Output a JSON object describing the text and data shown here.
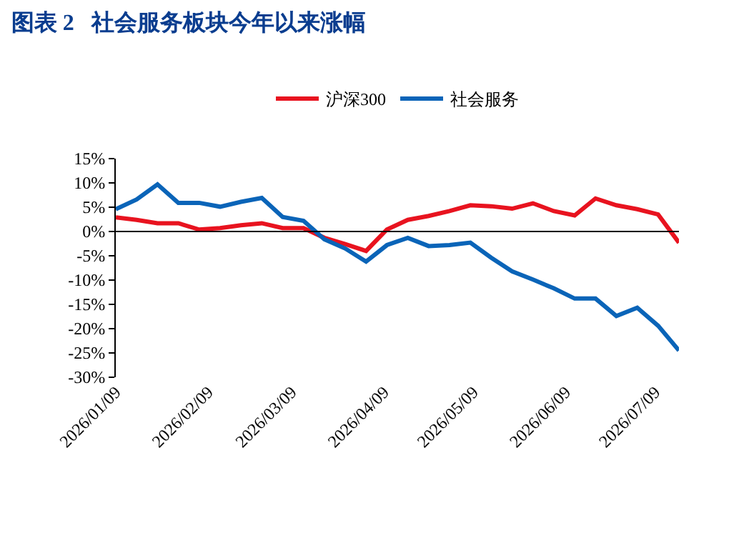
{
  "chart_data": {
    "type": "line",
    "title": "图表 2   社会服务板块今年以来涨幅",
    "x": [
      "2026-01-09",
      "2026-01-16",
      "2026-01-23",
      "2026-01-30",
      "2026-02-06",
      "2026-02-13",
      "2026-02-20",
      "2026-02-27",
      "2026-03-06",
      "2026-03-13",
      "2026-03-20",
      "2026-03-27",
      "2026-04-03",
      "2026-04-10",
      "2026-04-17",
      "2026-04-24",
      "2026-05-01",
      "2026-05-08",
      "2026-05-15",
      "2026-05-22",
      "2026-05-29",
      "2026-06-05",
      "2026-06-12",
      "2026-06-19",
      "2026-06-26",
      "2026-07-03",
      "2026-07-10",
      "2026-07-17"
    ],
    "series": [
      {
        "name": "沪深300",
        "color": "#e8131f",
        "values": [
          2.9,
          2.4,
          1.7,
          1.7,
          0.4,
          0.7,
          1.3,
          1.7,
          0.7,
          0.7,
          -1.3,
          -2.6,
          -4.0,
          0.4,
          2.4,
          3.2,
          4.2,
          5.4,
          5.2,
          4.7,
          5.8,
          4.2,
          3.3,
          6.8,
          5.4,
          4.6,
          3.5,
          -2.3
        ]
      },
      {
        "name": "社会服务",
        "color": "#0a64b8",
        "values": [
          4.6,
          6.6,
          9.7,
          5.9,
          5.9,
          5.1,
          6.1,
          6.9,
          3.0,
          2.2,
          -1.6,
          -3.5,
          -6.2,
          -2.8,
          -1.3,
          -3.0,
          -2.8,
          -2.3,
          -5.4,
          -8.2,
          -9.9,
          -11.7,
          -13.8,
          -13.8,
          -17.4,
          -15.7,
          -19.4,
          -24.5
        ]
      }
    ],
    "xlim": [
      "2026-01-09",
      "2026-07-17"
    ],
    "xticks": [
      {
        "value": "2026-01-09",
        "label": "2026/01/09"
      },
      {
        "value": "2026-02-09",
        "label": "2026/02/09"
      },
      {
        "value": "2026-03-09",
        "label": "2026/03/09"
      },
      {
        "value": "2026-04-09",
        "label": "2026/04/09"
      },
      {
        "value": "2026-05-09",
        "label": "2026/05/09"
      },
      {
        "value": "2026-06-09",
        "label": "2026/06/09"
      },
      {
        "value": "2026-07-09",
        "label": "2026/07/09"
      }
    ],
    "ylim": [
      -30,
      15
    ],
    "yticks": [
      {
        "value": 15,
        "label": "15%"
      },
      {
        "value": 10,
        "label": "10%"
      },
      {
        "value": 5,
        "label": "5%"
      },
      {
        "value": 0,
        "label": "0%"
      },
      {
        "value": -5,
        "label": "-5%"
      },
      {
        "value": -10,
        "label": "-10%"
      },
      {
        "value": -15,
        "label": "-15%"
      },
      {
        "value": -20,
        "label": "-20%"
      },
      {
        "value": -25,
        "label": "-25%"
      },
      {
        "value": -30,
        "label": "-30%"
      }
    ],
    "ref_lines": [
      {
        "axis": "y",
        "value": 0,
        "color": "#000000",
        "line_style": "solid"
      }
    ],
    "legend": "top",
    "marker": "none",
    "line_style": "solid"
  }
}
